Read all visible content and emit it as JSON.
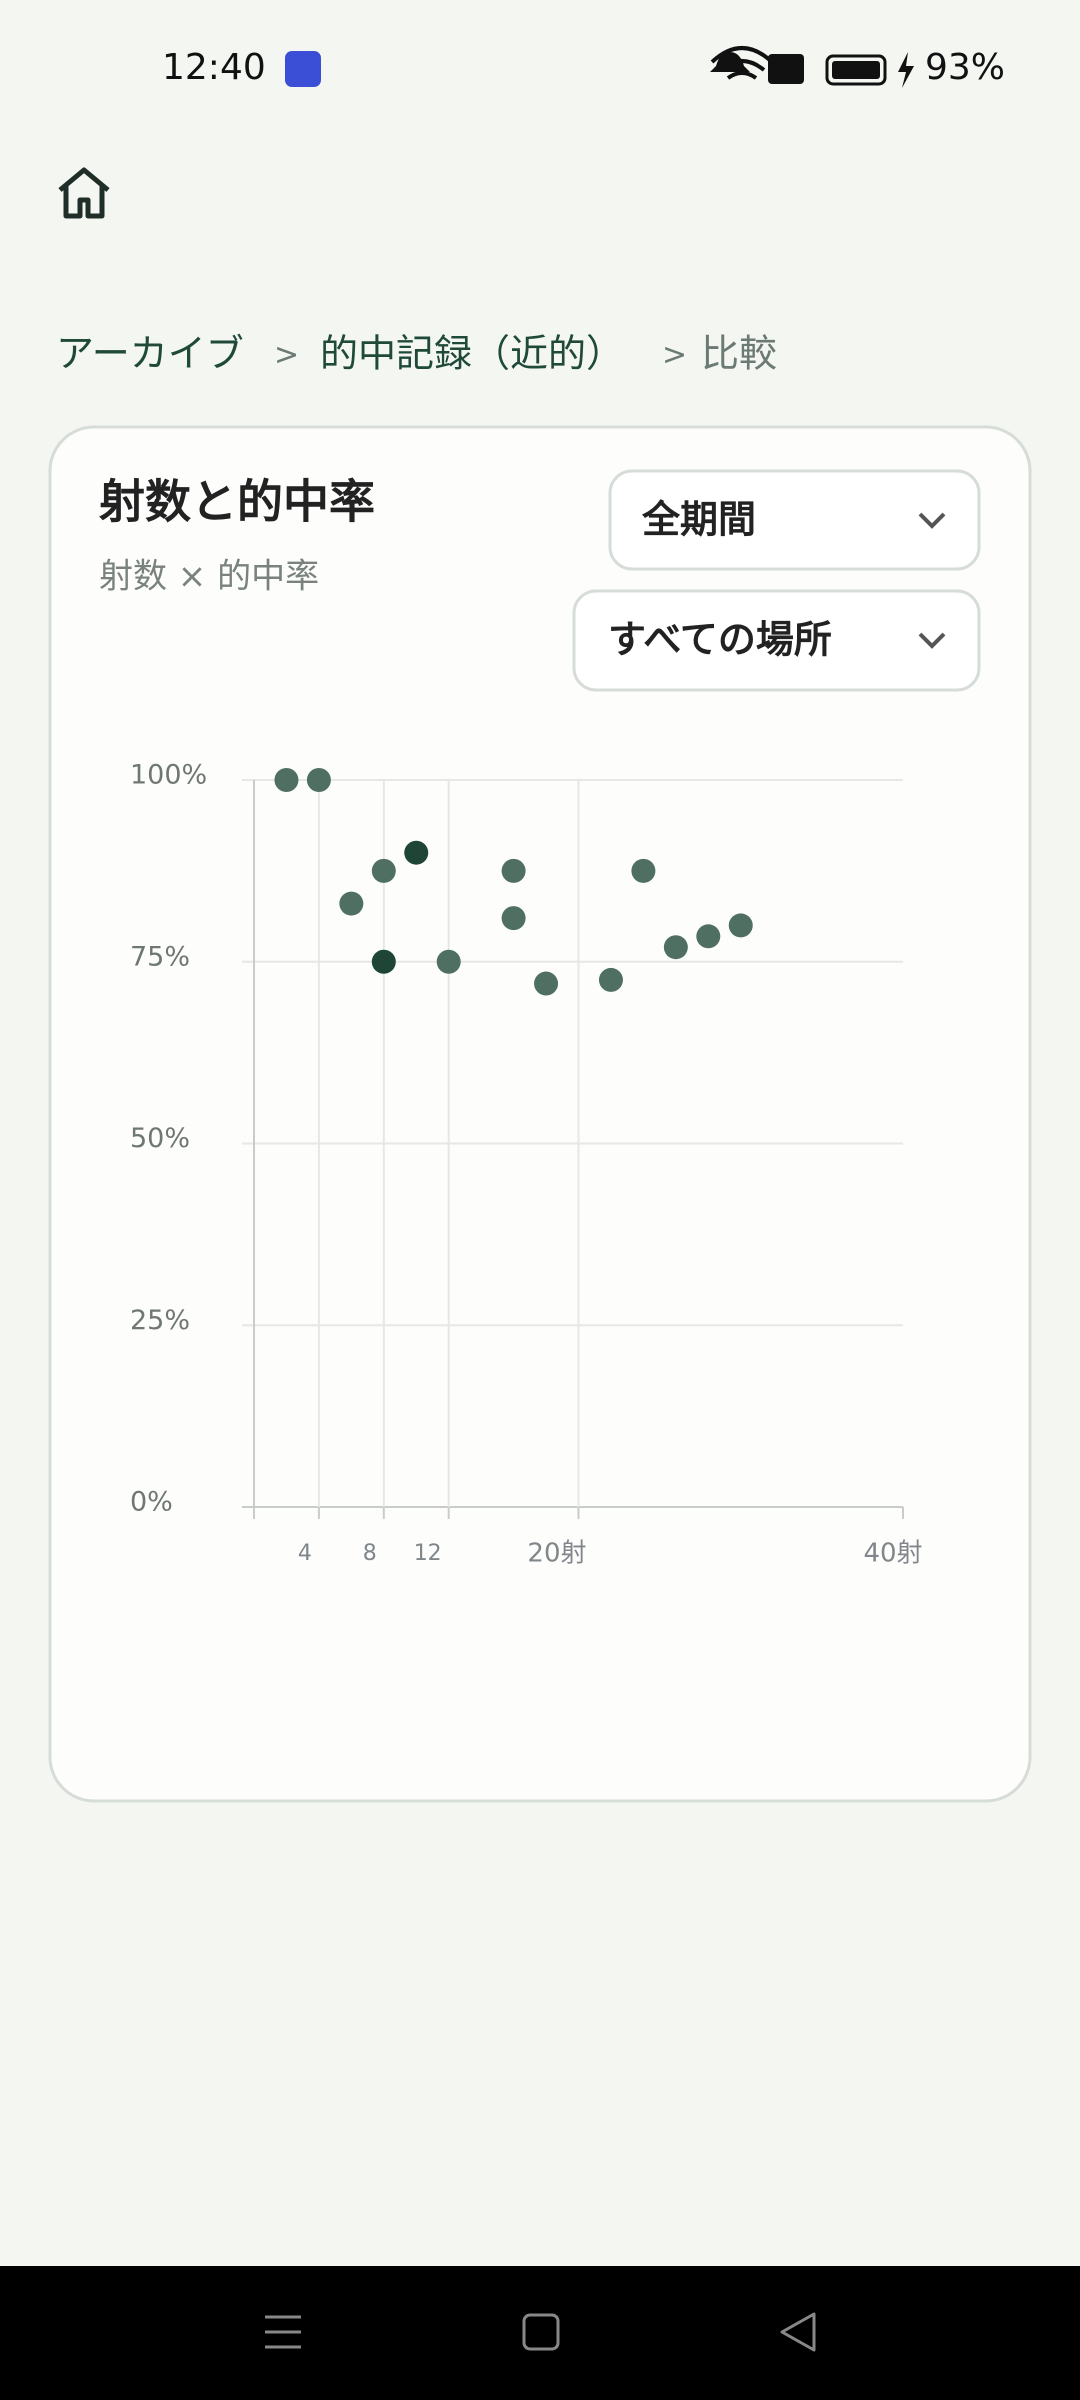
{
  "status_bar": {
    "time": "12:40",
    "battery": "93%"
  },
  "breadcrumb": [
    "アーカイブ",
    ">",
    "的中記録（近的）",
    ">",
    "比較"
  ],
  "card": {
    "title": "射数と的中率",
    "subtitle": "射数 × 的中率",
    "filters": [
      "全期間",
      "すべての場所"
    ]
  },
  "chart_data": {
    "type": "scatter",
    "x": [
      2,
      4,
      6,
      8,
      8,
      10,
      12,
      16,
      16,
      18,
      22,
      24,
      26,
      28,
      30
    ],
    "values": [
      100,
      100,
      83,
      87.5,
      75,
      90,
      75,
      87.5,
      81,
      72,
      72.5,
      87.5,
      77,
      78.5,
      80
    ],
    "colors": [
      "#4f6f63",
      "#4f6f63",
      "#4f6f63",
      "#4f6f63",
      "#1e4535",
      "#1e4535",
      "#4f6f63",
      "#4f6f63",
      "#4f6f63",
      "#4f6f63",
      "#4f6f63",
      "#4f6f63",
      "#4f6f63",
      "#4f6f63",
      "#4f6f63"
    ],
    "xlim": [
      0,
      40
    ],
    "xticks": [
      4,
      8,
      12,
      {
        "value": 20,
        "label": "20射"
      },
      {
        "value": 40,
        "label": "40射"
      }
    ],
    "ylim": [
      0,
      100
    ],
    "yticks": [
      {
        "value": 0,
        "label": "0%"
      },
      {
        "value": 25,
        "label": "25%"
      },
      {
        "value": 50,
        "label": "50%"
      },
      {
        "value": 75,
        "label": "75%"
      },
      {
        "value": 100,
        "label": "100%"
      }
    ],
    "grid": true
  }
}
